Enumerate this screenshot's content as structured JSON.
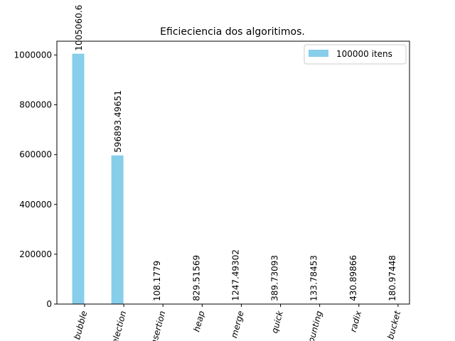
{
  "chart_data": {
    "type": "bar",
    "title": "Eficieciencia dos algoritimos.",
    "xlabel": "",
    "ylabel": "",
    "categories": [
      "bubble",
      "selection",
      "insertion",
      "heap",
      "merge",
      "quick",
      "counting",
      "radix",
      "bucket"
    ],
    "series": [
      {
        "name": "100000 itens",
        "color": "#87ceeb",
        "values": [
          1005060.6,
          596893.49651,
          108.1779,
          829.51569,
          1247.49302,
          389.73093,
          133.78453,
          430.89866,
          180.97448
        ],
        "labels": [
          "1005060.6",
          "596893.49651",
          "108.1779",
          "829.51569",
          "1247.49302",
          "389.73093",
          "133.78453",
          "430.89866",
          "180.97448"
        ]
      }
    ],
    "ylim": [
      0,
      1055313.63
    ],
    "yticks": [
      0,
      200000,
      400000,
      600000,
      800000,
      1000000
    ],
    "ytick_labels": [
      "0",
      "200000",
      "400000",
      "600000",
      "800000",
      "1000000"
    ],
    "grid": false,
    "legend": "top-right"
  }
}
